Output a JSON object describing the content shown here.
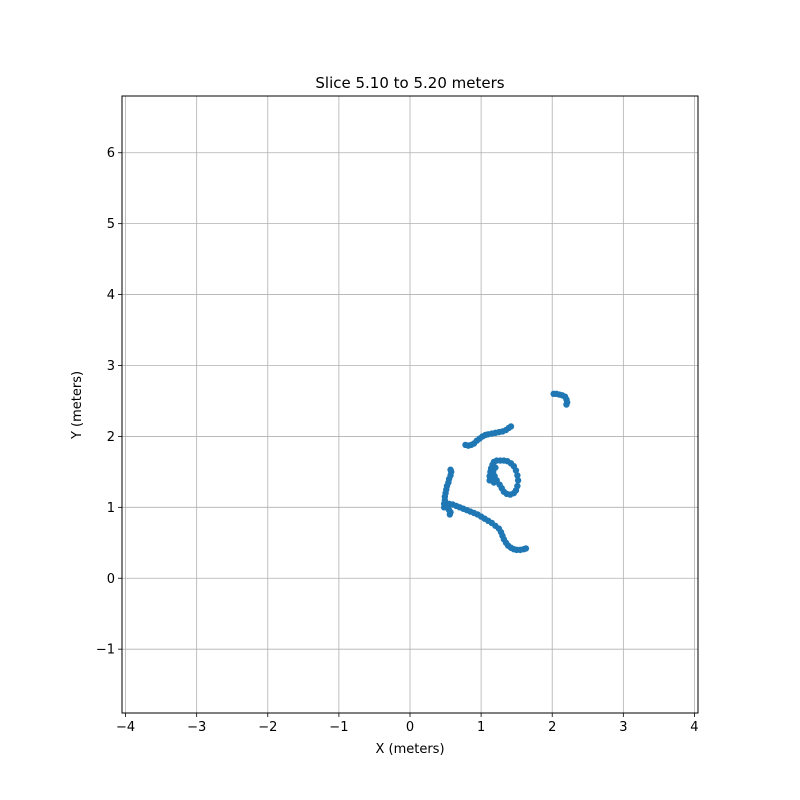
{
  "chart_data": {
    "type": "scatter",
    "title": "Slice 5.10 to 5.20 meters",
    "xlabel": "X (meters)",
    "ylabel": "Y (meters)",
    "xlim": [
      -4.05,
      4.05
    ],
    "ylim": [
      -1.9,
      6.8
    ],
    "xticks": [
      -4,
      -3,
      -2,
      -1,
      0,
      1,
      2,
      3,
      4
    ],
    "xtick_labels": [
      "−4",
      "−3",
      "−2",
      "−1",
      "0",
      "1",
      "2",
      "3",
      "4"
    ],
    "yticks": [
      -1,
      0,
      1,
      2,
      3,
      4,
      5,
      6
    ],
    "ytick_labels": [
      "−1",
      "0",
      "1",
      "2",
      "3",
      "4",
      "5",
      "6"
    ],
    "grid": true,
    "marker_color": "#1f77b4",
    "series": [
      {
        "points": [
          [
            0.48,
            1.0
          ],
          [
            0.48,
            1.05
          ],
          [
            0.49,
            1.1
          ],
          [
            0.49,
            1.15
          ],
          [
            0.5,
            1.2
          ],
          [
            0.51,
            1.25
          ],
          [
            0.52,
            1.3
          ],
          [
            0.54,
            1.35
          ],
          [
            0.55,
            1.4
          ],
          [
            0.57,
            1.45
          ],
          [
            0.58,
            1.5
          ],
          [
            0.57,
            1.53
          ],
          [
            0.56,
            0.9
          ],
          [
            0.57,
            0.93
          ],
          [
            0.55,
            0.96
          ],
          [
            0.53,
            0.99
          ],
          [
            0.5,
            1.06
          ],
          [
            0.55,
            1.05
          ],
          [
            0.6,
            1.04
          ],
          [
            0.65,
            1.02
          ],
          [
            0.7,
            1.0
          ],
          [
            0.75,
            0.98
          ],
          [
            0.8,
            0.96
          ],
          [
            0.85,
            0.94
          ],
          [
            0.9,
            0.92
          ],
          [
            0.95,
            0.9
          ],
          [
            1.0,
            0.87
          ],
          [
            1.05,
            0.84
          ],
          [
            1.1,
            0.81
          ],
          [
            1.15,
            0.78
          ],
          [
            1.2,
            0.74
          ],
          [
            1.25,
            0.7
          ],
          [
            1.28,
            0.65
          ],
          [
            1.3,
            0.6
          ],
          [
            1.32,
            0.55
          ],
          [
            1.35,
            0.5
          ],
          [
            1.38,
            0.46
          ],
          [
            1.42,
            0.43
          ],
          [
            1.46,
            0.41
          ],
          [
            1.5,
            0.4
          ],
          [
            1.55,
            0.4
          ],
          [
            1.6,
            0.41
          ],
          [
            1.63,
            0.42
          ],
          [
            0.78,
            1.88
          ],
          [
            0.82,
            1.87
          ],
          [
            0.86,
            1.88
          ],
          [
            0.9,
            1.9
          ],
          [
            0.94,
            1.94
          ],
          [
            0.98,
            1.97
          ],
          [
            1.02,
            2.0
          ],
          [
            1.06,
            2.02
          ],
          [
            1.1,
            2.03
          ],
          [
            1.15,
            2.04
          ],
          [
            1.2,
            2.05
          ],
          [
            1.25,
            2.06
          ],
          [
            1.3,
            2.07
          ],
          [
            1.35,
            2.09
          ],
          [
            1.39,
            2.12
          ],
          [
            1.42,
            2.14
          ],
          [
            1.12,
            1.38
          ],
          [
            1.12,
            1.44
          ],
          [
            1.13,
            1.5
          ],
          [
            1.14,
            1.55
          ],
          [
            1.16,
            1.6
          ],
          [
            1.18,
            1.64
          ],
          [
            1.22,
            1.66
          ],
          [
            1.27,
            1.66
          ],
          [
            1.32,
            1.66
          ],
          [
            1.37,
            1.65
          ],
          [
            1.42,
            1.62
          ],
          [
            1.46,
            1.58
          ],
          [
            1.49,
            1.52
          ],
          [
            1.51,
            1.45
          ],
          [
            1.52,
            1.38
          ],
          [
            1.51,
            1.3
          ],
          [
            1.49,
            1.24
          ],
          [
            1.46,
            1.2
          ],
          [
            1.41,
            1.18
          ],
          [
            1.36,
            1.19
          ],
          [
            1.32,
            1.22
          ],
          [
            1.29,
            1.27
          ],
          [
            1.26,
            1.32
          ],
          [
            1.22,
            1.38
          ],
          [
            1.19,
            1.44
          ],
          [
            1.17,
            1.5
          ],
          [
            1.2,
            1.56
          ],
          [
            1.15,
            1.4
          ],
          [
            1.18,
            1.35
          ],
          [
            2.02,
            2.6
          ],
          [
            2.06,
            2.6
          ],
          [
            2.1,
            2.59
          ],
          [
            2.14,
            2.58
          ],
          [
            2.18,
            2.56
          ],
          [
            2.2,
            2.52
          ],
          [
            2.21,
            2.48
          ],
          [
            2.2,
            2.45
          ]
        ]
      }
    ]
  }
}
